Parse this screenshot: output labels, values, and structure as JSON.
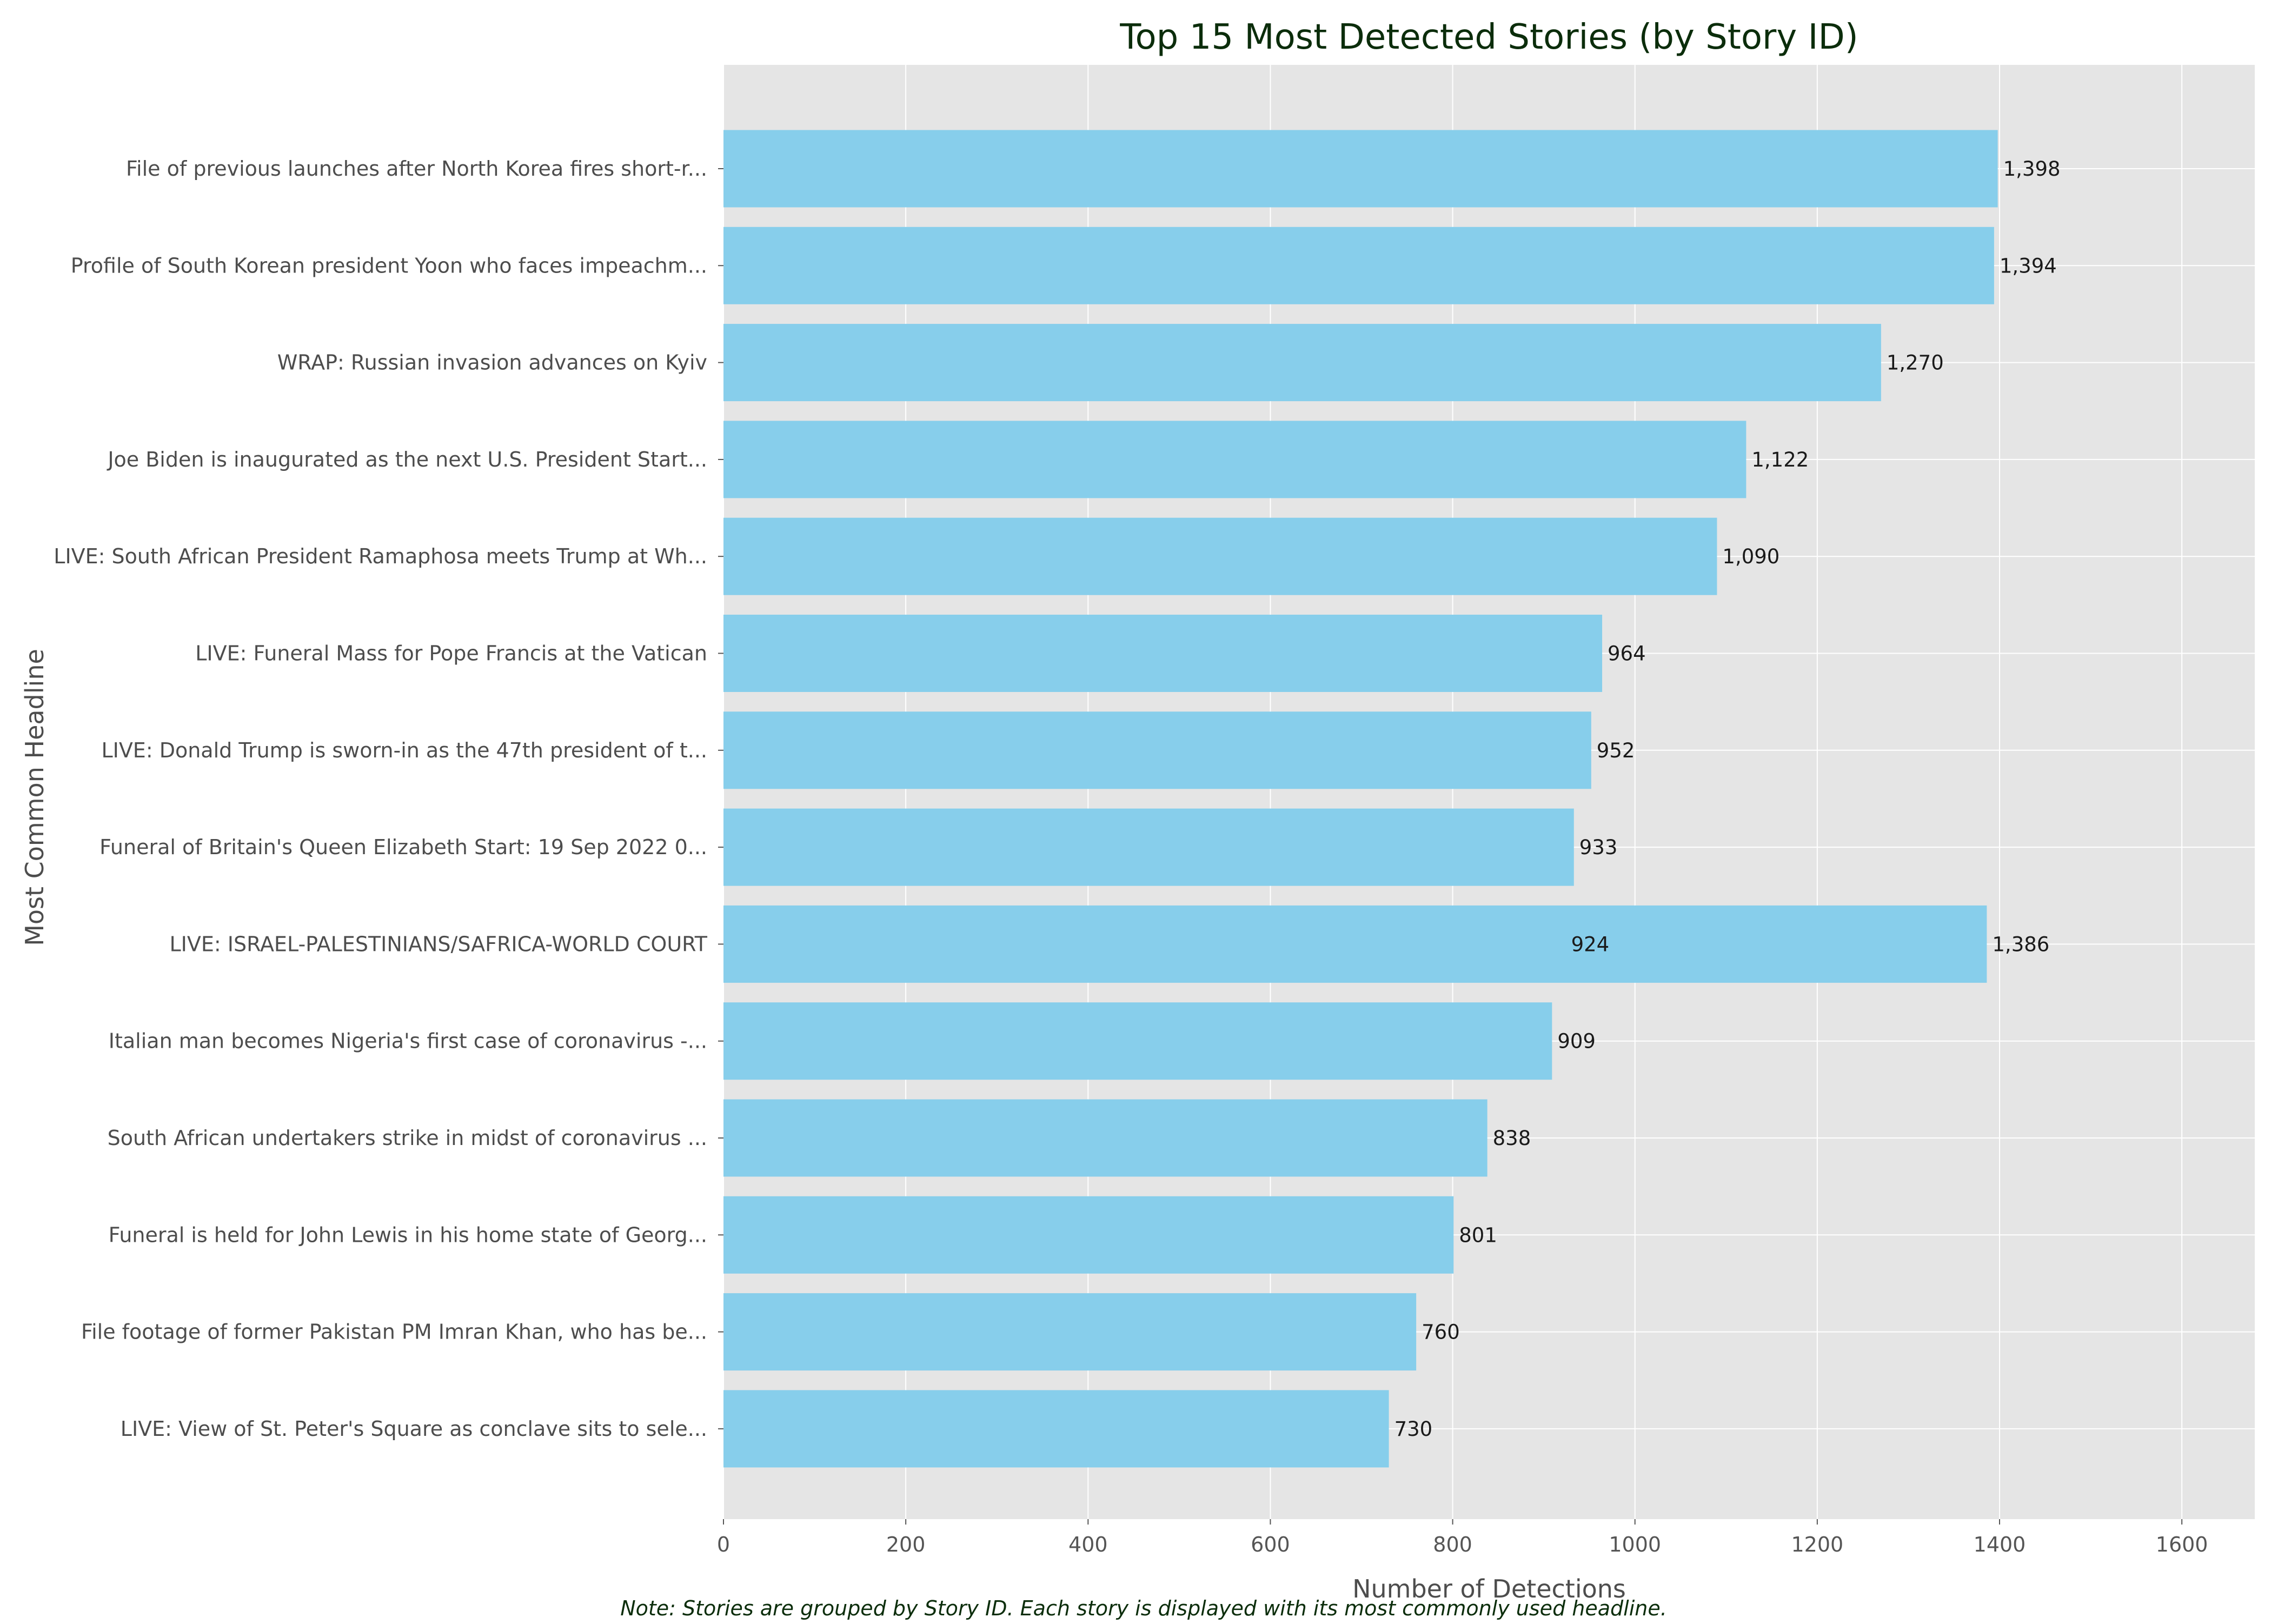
{
  "colors": {
    "bar": "#87CEEB",
    "plot_background": "#E5E5E5",
    "grid": "#FFFFFF",
    "title": "#0B2D0B",
    "axis_text": "#4D4D4D",
    "note": "#0B2D0B"
  },
  "note": "Note: Stories are grouped by Story ID. Each story is displayed with its most commonly used headline.",
  "chart_data": {
    "type": "bar",
    "orientation": "horizontal",
    "title": "Top 15 Most Detected Stories (by Story ID)",
    "xlabel": "Number of Detections",
    "ylabel": "Most Common Headline",
    "xlim": [
      0,
      1680
    ],
    "xticks": [
      0,
      200,
      400,
      600,
      800,
      1000,
      1200,
      1400,
      1600
    ],
    "grid": true,
    "categories": [
      "File of previous launches after North Korea fires short-r...",
      "Profile of South Korean president Yoon who faces impeachm...",
      "WRAP: Russian invasion advances on Kyiv",
      "Joe Biden is inaugurated as the next U.S. President Start...",
      "LIVE: South African President Ramaphosa meets Trump at Wh...",
      "LIVE: Funeral Mass for Pope Francis at the Vatican",
      "LIVE: Donald Trump is sworn-in as the 47th president of t...",
      "Funeral of Britain's Queen Elizabeth Start: 19 Sep 2022 0...",
      "LIVE: ISRAEL-PALESTINIANS/SAFRICA-WORLD COURT",
      "Italian man becomes Nigeria's first case of coronavirus -...",
      "South African undertakers strike in midst of coronavirus ...",
      "Funeral is held for John Lewis in his home state of Georg...",
      "File footage of former Pakistan PM Imran Khan, who has be...",
      "LIVE: View of St. Peter's Square as conclave sits to sele..."
    ],
    "values": [
      1398,
      1394,
      1270,
      1122,
      1090,
      964,
      952,
      933,
      1386,
      909,
      838,
      801,
      760,
      730
    ],
    "data_labels": [
      "1,398",
      "1,394",
      "1,270",
      "1,122",
      "1,090",
      "964",
      "952",
      "933",
      "1,386",
      "909",
      "838",
      "801",
      "760",
      "730"
    ],
    "overlapping_bar": {
      "category": "LIVE: ISRAEL-PALESTINIANS/SAFRICA-WORLD COURT",
      "value": 924,
      "label": "924"
    }
  }
}
